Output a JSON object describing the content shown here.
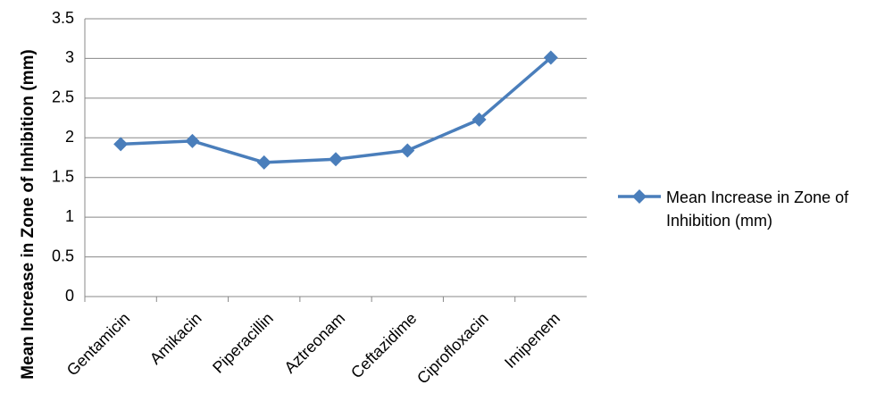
{
  "chart_data": {
    "type": "line",
    "y_label": "Mean Increase in Zone of Inhibition (mm)",
    "categories": [
      "Gentamicin",
      "Amikacin",
      "Piperacillin",
      "Aztreonam",
      "Ceftazidime",
      "Ciprofloxacin",
      "Imipenem"
    ],
    "series": [
      {
        "name": "Mean Increase in Zone of Inhibition (mm)",
        "color": "#4a7ebb",
        "values": [
          1.92,
          1.96,
          1.69,
          1.73,
          1.84,
          2.23,
          3.01
        ]
      }
    ],
    "ylim": [
      0,
      3.5
    ],
    "yticks": [
      0,
      0.5,
      1,
      1.5,
      2,
      2.5,
      3,
      3.5
    ],
    "grid": true,
    "legend": "right"
  }
}
